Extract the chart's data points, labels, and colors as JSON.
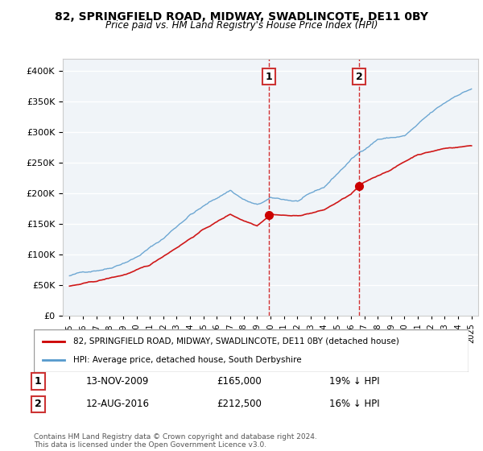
{
  "title": "82, SPRINGFIELD ROAD, MIDWAY, SWADLINCOTE, DE11 0BY",
  "subtitle": "Price paid vs. HM Land Registry's House Price Index (HPI)",
  "footnote": "Contains HM Land Registry data © Crown copyright and database right 2024.\nThis data is licensed under the Open Government Licence v3.0.",
  "legend_label_red": "82, SPRINGFIELD ROAD, MIDWAY, SWADLINCOTE, DE11 0BY (detached house)",
  "legend_label_blue": "HPI: Average price, detached house, South Derbyshire",
  "transaction1_date": "13-NOV-2009",
  "transaction1_price": "£165,000",
  "transaction1_hpi": "19% ↓ HPI",
  "transaction2_date": "12-AUG-2016",
  "transaction2_price": "£212,500",
  "transaction2_hpi": "16% ↓ HPI",
  "marker1_x": 2009.87,
  "marker1_y": 165000,
  "marker2_x": 2016.62,
  "marker2_y": 212500,
  "vline1_x": 2009.87,
  "vline2_x": 2016.62,
  "ylim": [
    0,
    420000
  ],
  "xlim": [
    1994.5,
    2025.5
  ],
  "background_color": "#ffffff",
  "plot_bg_color": "#f0f4f8",
  "grid_color": "#ffffff",
  "red_line_color": "#cc0000",
  "blue_line_color": "#5599cc",
  "vline_color": "#cc0000",
  "marker_color": "#cc0000",
  "box_color": "#cc3333"
}
